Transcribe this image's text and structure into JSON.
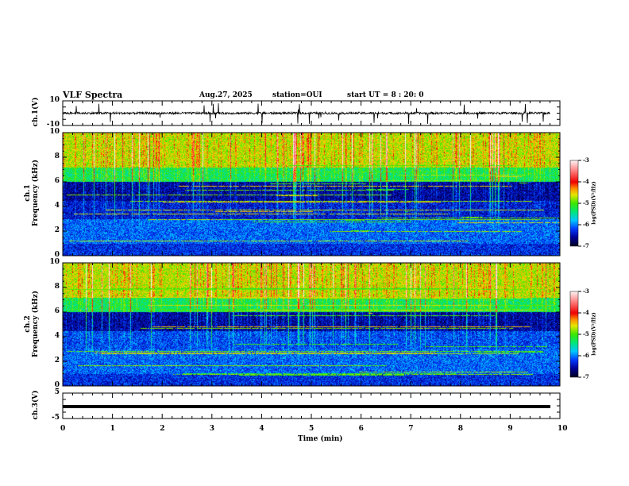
{
  "header": {
    "title": "VLF Spectra",
    "date": "Aug.27, 2025",
    "station": "station=OUI",
    "start": "start UT =  8 : 20: 0"
  },
  "chart_data": [
    {
      "type": "line",
      "name": "ch1-waveform",
      "ylabel": "ch.1(V)",
      "ylim": [
        -10,
        10
      ],
      "yticks": [
        "10",
        "-10"
      ],
      "xlim": [
        0,
        10
      ],
      "baseline": 0,
      "noise_amplitude": 1.5
    },
    {
      "type": "heatmap",
      "name": "ch1-spectrogram",
      "ylabel": "ch.1\nFrequency (kHz)",
      "ylabel_line1": "ch.1",
      "ylabel_line2": "Frequency  (kHz)",
      "ylim": [
        0,
        10
      ],
      "yticks": [
        "0",
        "2",
        "4",
        "6",
        "8",
        "10"
      ],
      "xlim": [
        0,
        10
      ],
      "colorbar": {
        "label": "log(PSD)(V²/Hz)",
        "range": [
          -7,
          -3
        ],
        "ticks": [
          "-3",
          "-4",
          "-5",
          "-6",
          "-7"
        ]
      }
    },
    {
      "type": "heatmap",
      "name": "ch2-spectrogram",
      "ylabel_line1": "ch.2",
      "ylabel_line2": "Frequency  (kHz)",
      "ylim": [
        0,
        10
      ],
      "yticks": [
        "0",
        "2",
        "4",
        "6",
        "8",
        "10"
      ],
      "xlim": [
        0,
        10
      ],
      "colorbar": {
        "label": "log(PSD)(V²/Hz)",
        "range": [
          -7,
          -3
        ],
        "ticks": [
          "-3",
          "-4",
          "-5",
          "-6",
          "-7"
        ]
      }
    },
    {
      "type": "line",
      "name": "ch3-waveform",
      "ylabel": "ch.3(V)",
      "ylim": [
        -5,
        5
      ],
      "yticks": [
        "5",
        "-5"
      ],
      "xlim": [
        0,
        10
      ],
      "baseline": -0.3
    }
  ],
  "xaxis": {
    "label": "Time  (min)",
    "ticks": [
      "0",
      "1",
      "2",
      "3",
      "4",
      "5",
      "6",
      "7",
      "8",
      "9",
      "10"
    ]
  }
}
